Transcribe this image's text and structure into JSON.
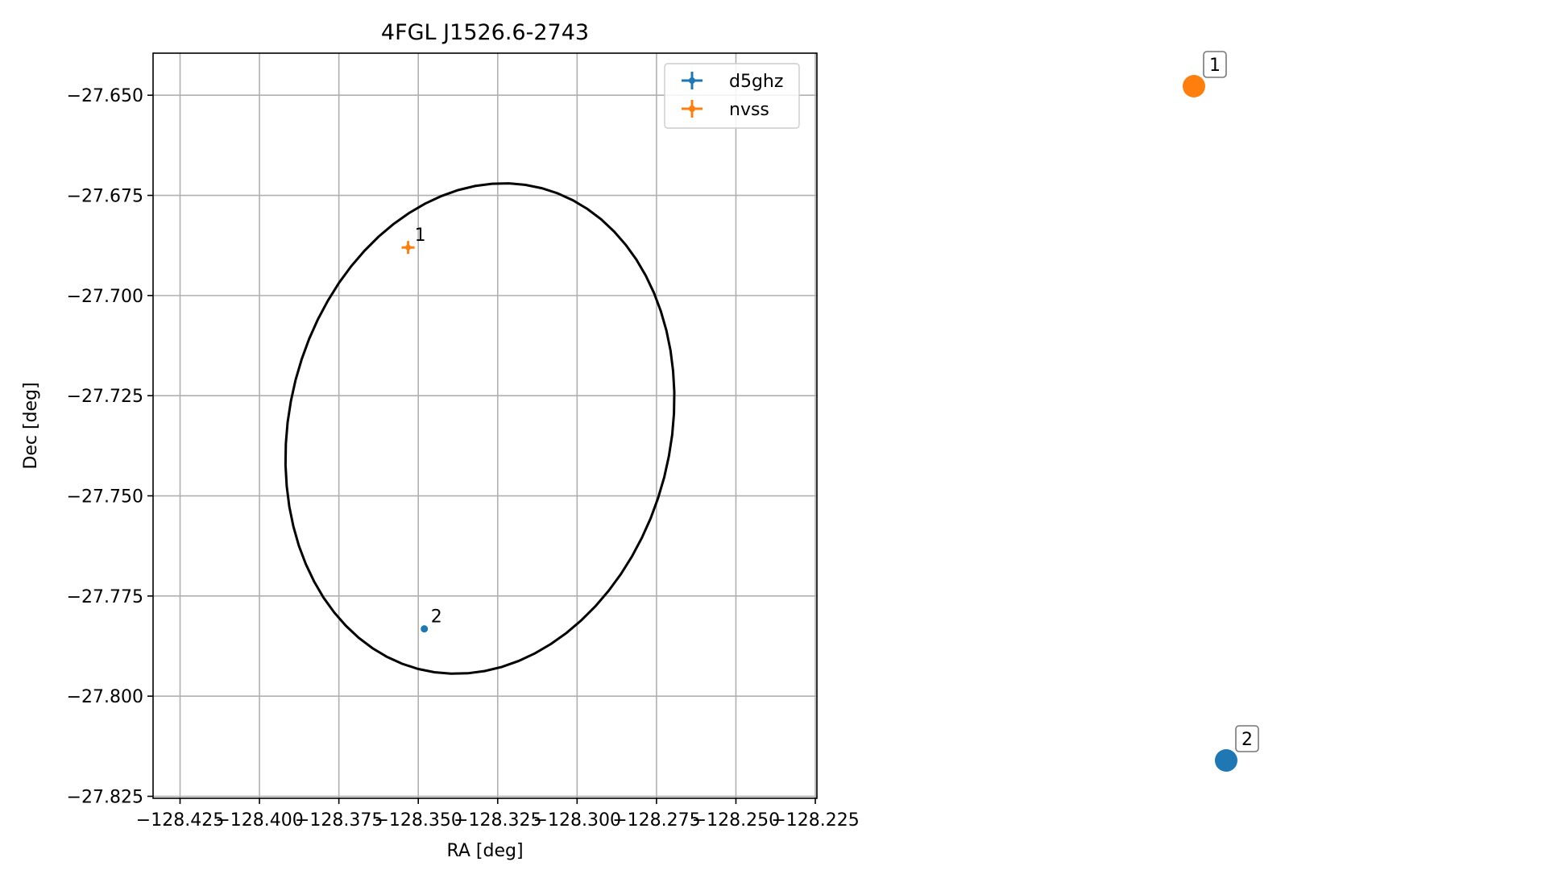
{
  "chart_data": [
    {
      "type": "scatter",
      "title": "4FGL J1526.6-2743",
      "xlabel": "RA [deg]",
      "ylabel": "Dec [deg]",
      "xlim": [
        -128.4335,
        -128.2245
      ],
      "ylim": [
        -27.8255,
        -27.6395
      ],
      "xticks": [
        -128.425,
        -128.4,
        -128.375,
        -128.35,
        -128.325,
        -128.3,
        -128.275,
        -128.25,
        -128.225
      ],
      "xtick_labels": [
        "−128.425",
        "−128.400",
        "−128.375",
        "−128.350",
        "−128.325",
        "−128.300",
        "−128.275",
        "−128.250",
        "−128.225"
      ],
      "yticks": [
        -27.65,
        -27.675,
        -27.7,
        -27.725,
        -27.75,
        -27.775,
        -27.8,
        -27.825
      ],
      "ytick_labels": [
        "−27.650",
        "−27.675",
        "−27.700",
        "−27.725",
        "−27.750",
        "−27.775",
        "−27.800",
        "−27.825"
      ],
      "grid": true,
      "legend_position": "top-right",
      "ellipse": {
        "center": [
          -128.3306,
          -27.7332
        ],
        "semi_axis_a": 0.0649,
        "semi_axis_b": 0.0573,
        "angle_deg": 45,
        "color": "#000000"
      },
      "series": [
        {
          "name": "d5ghz",
          "color": "#1f77b4",
          "points": [
            {
              "label": "2",
              "x": -128.3481,
              "y": -27.7832
            }
          ]
        },
        {
          "name": "nvss",
          "color": "#ff7f0e",
          "points": [
            {
              "label": "1",
              "x": -128.3532,
              "y": -27.688
            }
          ]
        }
      ]
    },
    {
      "type": "scatter",
      "title": "",
      "xlabel": "",
      "ylabel": "",
      "axes_visible": false,
      "series": [
        {
          "color": "#ff7f0e",
          "points": [
            {
              "label": "1",
              "x": 0,
              "y": 1
            }
          ]
        },
        {
          "color": "#1f77b4",
          "points": [
            {
              "label": "2",
              "x": 0.15,
              "y": 0
            }
          ]
        }
      ]
    }
  ]
}
